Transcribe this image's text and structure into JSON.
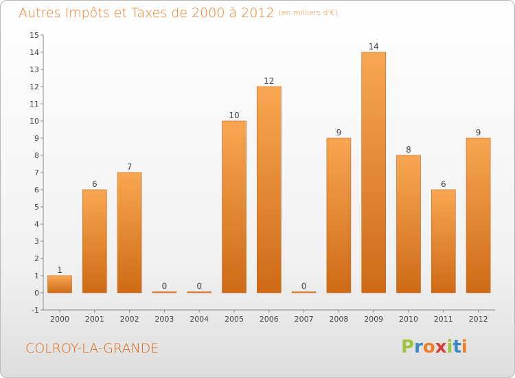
{
  "chart_data": {
    "type": "bar",
    "title": "Autres Impôts et Taxes de 2000 à 2012",
    "unit_note": "(en milliers d'€)",
    "categories": [
      "2000",
      "2001",
      "2002",
      "2003",
      "2004",
      "2005",
      "2006",
      "2007",
      "2008",
      "2009",
      "2010",
      "2011",
      "2012"
    ],
    "values": [
      1,
      6,
      7,
      0,
      0,
      10,
      12,
      0,
      9,
      14,
      8,
      6,
      9
    ],
    "ylim": [
      -1,
      15
    ],
    "yticks": [
      -1,
      0,
      1,
      2,
      3,
      4,
      5,
      6,
      7,
      8,
      9,
      10,
      11,
      12,
      13,
      14,
      15
    ],
    "xlabel": "",
    "ylabel": "",
    "grid": false,
    "legend": "none",
    "bar_color": "#f2953f",
    "bar_color_dark": "#d2701e"
  },
  "footer": {
    "commune": "COLROY-LA-GRANDE",
    "logo_text": "Proxiti",
    "logo_colors": [
      "#9ec43a",
      "#3b88c9",
      "#f07d24",
      "#d83b3b",
      "#9ec43a",
      "#3b88c9",
      "#f07d24"
    ]
  }
}
